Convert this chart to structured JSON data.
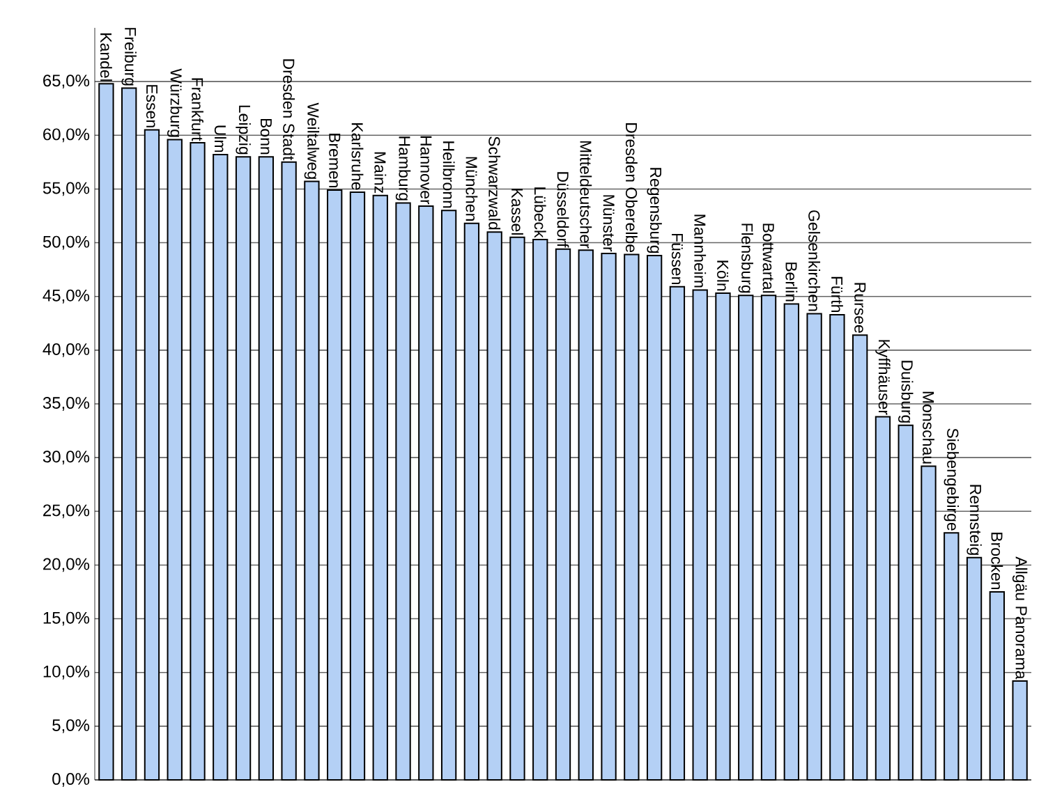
{
  "chart_data": {
    "type": "bar",
    "categories": [
      "Kandel",
      "Freiburg",
      "Essen",
      "Würzburg",
      "Frankfurt",
      "Ulm",
      "Leipzig",
      "Bonn",
      "Dresden Stadt",
      "Weiltalweg",
      "Bremen",
      "Karlsruhe",
      "Mainz",
      "Hamburg",
      "Hannover",
      "Heilbronn",
      "München",
      "Schwarzwald",
      "Kassel",
      "Lübeck",
      "Düsseldorf",
      "Mitteldeutscher",
      "Münster",
      "Dresden Oberelbe",
      "Regensburg",
      "Füssen",
      "Mannheim",
      "Köln",
      "Flensburg",
      "Bottwartal",
      "Berlin",
      "Gelsenkirchen",
      "Fürth",
      "Rursee",
      "Kyffhäuser",
      "Duisburg",
      "Monschau",
      "Siebengebirge",
      "Rennsteig",
      "Brocken",
      "Allgäu Panorama"
    ],
    "values": [
      64.8,
      64.4,
      60.5,
      59.6,
      59.3,
      58.2,
      58.0,
      58.0,
      57.5,
      55.7,
      54.9,
      54.7,
      54.4,
      53.7,
      53.4,
      53.0,
      51.8,
      51.0,
      50.5,
      50.3,
      49.4,
      49.3,
      49.0,
      48.9,
      48.8,
      45.9,
      45.6,
      45.3,
      45.1,
      45.1,
      44.3,
      43.4,
      43.3,
      41.4,
      33.8,
      33.0,
      29.2,
      23.0,
      20.7,
      17.5,
      9.2
    ],
    "color": "#b4d0f5",
    "ylim": [
      0,
      70
    ],
    "yticks": [
      {
        "value": 0,
        "label": "0,0%"
      },
      {
        "value": 5,
        "label": "5,0%"
      },
      {
        "value": 10,
        "label": "10,0%"
      },
      {
        "value": 15,
        "label": "15,0%"
      },
      {
        "value": 20,
        "label": "20,0%"
      },
      {
        "value": 25,
        "label": "25,0%"
      },
      {
        "value": 30,
        "label": "30,0%"
      },
      {
        "value": 35,
        "label": "35,0%"
      },
      {
        "value": 40,
        "label": "40,0%"
      },
      {
        "value": 45,
        "label": "45,0%"
      },
      {
        "value": 50,
        "label": "50,0%"
      },
      {
        "value": 55,
        "label": "55,0%"
      },
      {
        "value": 60,
        "label": "60,0%"
      },
      {
        "value": 65,
        "label": "65,0%"
      }
    ],
    "grid": "y"
  }
}
